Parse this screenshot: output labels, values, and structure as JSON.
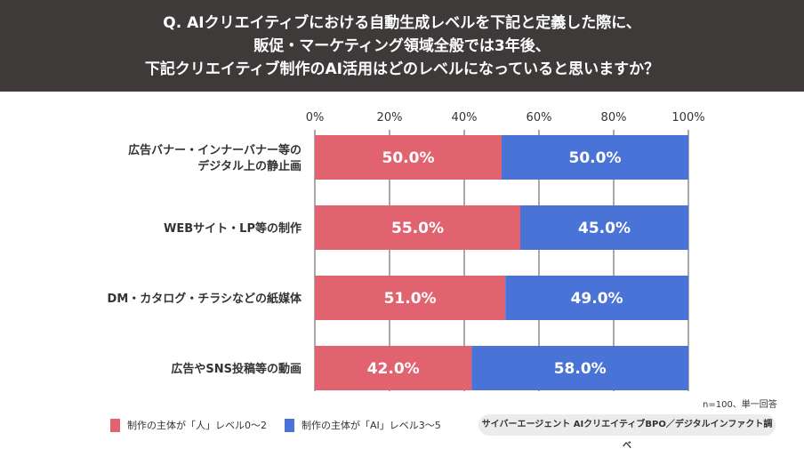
{
  "header": {
    "lines": [
      "Q. AIクリエイティブにおける自動生成レベルを下記と定義した際に、",
      "販促・マーケティング領域全般では3年後、",
      "下記クリエイティブ制作のAI活用はどのレベルになっていると思いますか？"
    ]
  },
  "chart_data": {
    "type": "bar",
    "stacked": true,
    "orientation": "horizontal",
    "categories": [
      [
        "広告バナー・インナーバナー等の",
        "デジタル上の静止画"
      ],
      [
        "WEBサイト・LP等の制作"
      ],
      [
        "DM・カタログ・チラシなどの紙媒体"
      ],
      [
        "広告やSNS投稿等の動画"
      ]
    ],
    "series": [
      {
        "name": "制作の主体が「人」レベル0〜2",
        "color": "#e0636f",
        "values": [
          50.0,
          55.0,
          51.0,
          42.0
        ]
      },
      {
        "name": "制作の主体が「AI」レベル3〜5",
        "color": "#4a73d8",
        "values": [
          50.0,
          45.0,
          49.0,
          58.0
        ]
      }
    ],
    "xticks": [
      "0%",
      "20%",
      "40%",
      "60%",
      "80%",
      "100%"
    ],
    "xlim": [
      0,
      100
    ],
    "legend": "bottom-left"
  },
  "note": "n=100、単一回答",
  "source": "サイバーエージェント AIクリエイティブBPO／デジタルインファクト調べ"
}
